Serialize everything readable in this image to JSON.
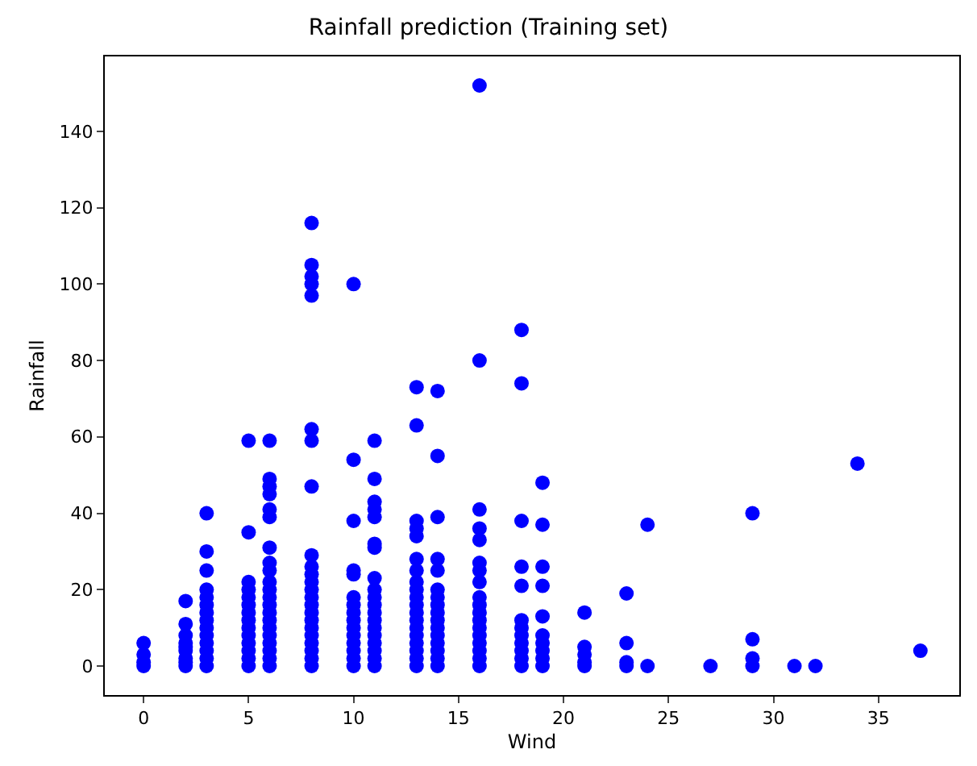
{
  "chart_data": {
    "type": "scatter",
    "title": "Rainfall prediction (Training set)",
    "xlabel": "Wind",
    "ylabel": "Rainfall",
    "x": [
      0,
      0,
      0,
      0,
      2,
      2,
      2,
      2,
      2,
      2,
      2,
      2,
      2,
      3,
      3,
      3,
      3,
      3,
      3,
      3,
      3,
      3,
      3,
      3,
      3,
      3,
      3,
      5,
      5,
      5,
      5,
      5,
      5,
      5,
      5,
      5,
      5,
      5,
      5,
      5,
      5,
      6,
      6,
      6,
      6,
      6,
      6,
      6,
      6,
      6,
      6,
      6,
      6,
      6,
      6,
      6,
      6,
      6,
      6,
      6,
      6,
      6,
      8,
      8,
      8,
      8,
      8,
      8,
      8,
      8,
      8,
      8,
      8,
      8,
      8,
      8,
      8,
      8,
      8,
      8,
      8,
      8,
      8,
      8,
      8,
      10,
      10,
      10,
      10,
      10,
      10,
      10,
      10,
      10,
      10,
      10,
      10,
      10,
      10,
      10,
      11,
      11,
      11,
      11,
      11,
      11,
      11,
      11,
      11,
      11,
      11,
      11,
      11,
      11,
      11,
      11,
      11,
      11,
      11,
      13,
      13,
      13,
      13,
      13,
      13,
      13,
      13,
      13,
      13,
      13,
      13,
      13,
      13,
      13,
      13,
      13,
      13,
      13,
      14,
      14,
      14,
      14,
      14,
      14,
      14,
      14,
      14,
      14,
      14,
      14,
      14,
      14,
      14,
      14,
      16,
      16,
      16,
      16,
      16,
      16,
      16,
      16,
      16,
      16,
      16,
      16,
      16,
      16,
      16,
      16,
      16,
      16,
      18,
      18,
      18,
      18,
      18,
      18,
      18,
      18,
      18,
      18,
      18,
      18,
      19,
      19,
      19,
      19,
      19,
      19,
      19,
      19,
      19,
      19,
      21,
      21,
      21,
      21,
      21,
      23,
      23,
      23,
      23,
      24,
      24,
      27,
      29,
      29,
      29,
      29,
      31,
      32,
      34,
      37
    ],
    "values": [
      0,
      1,
      3,
      6,
      0,
      1,
      2,
      4,
      5,
      6,
      8,
      11,
      17,
      0,
      2,
      4,
      6,
      8,
      10,
      12,
      14,
      16,
      18,
      20,
      25,
      30,
      40,
      0,
      2,
      4,
      6,
      8,
      10,
      12,
      14,
      16,
      18,
      20,
      22,
      35,
      59,
      0,
      2,
      4,
      6,
      8,
      10,
      12,
      14,
      16,
      18,
      20,
      22,
      25,
      27,
      31,
      39,
      41,
      45,
      47,
      49,
      59,
      0,
      2,
      4,
      6,
      8,
      10,
      12,
      14,
      16,
      18,
      20,
      22,
      24,
      26,
      29,
      47,
      59,
      62,
      97,
      100,
      102,
      105,
      116,
      0,
      2,
      4,
      6,
      8,
      10,
      12,
      14,
      16,
      18,
      24,
      25,
      38,
      54,
      100,
      0,
      2,
      4,
      6,
      8,
      10,
      12,
      14,
      16,
      18,
      20,
      23,
      31,
      32,
      39,
      41,
      43,
      49,
      59,
      0,
      2,
      4,
      6,
      8,
      10,
      12,
      14,
      16,
      18,
      20,
      22,
      25,
      28,
      34,
      36,
      38,
      63,
      73,
      0,
      2,
      4,
      6,
      8,
      10,
      12,
      14,
      16,
      18,
      20,
      25,
      28,
      39,
      55,
      72,
      0,
      2,
      4,
      6,
      8,
      10,
      12,
      14,
      16,
      18,
      22,
      25,
      27,
      33,
      36,
      41,
      80,
      152,
      0,
      2,
      4,
      6,
      8,
      10,
      12,
      21,
      26,
      38,
      74,
      88,
      0,
      2,
      4,
      6,
      8,
      13,
      21,
      26,
      37,
      48,
      0,
      1,
      3,
      5,
      14,
      0,
      1,
      6,
      19,
      0,
      37,
      0,
      0,
      2,
      7,
      40,
      0,
      0,
      53,
      4
    ],
    "color": "#0000ff",
    "marker": "circle",
    "xlim": [
      -1.85,
      38.85
    ],
    "xticks": [
      0,
      5,
      10,
      15,
      20,
      25,
      30,
      35
    ],
    "ylim": [
      -7.6,
      159.6
    ],
    "yticks": [
      0,
      20,
      40,
      60,
      80,
      100,
      120,
      140
    ],
    "grid": false
  }
}
